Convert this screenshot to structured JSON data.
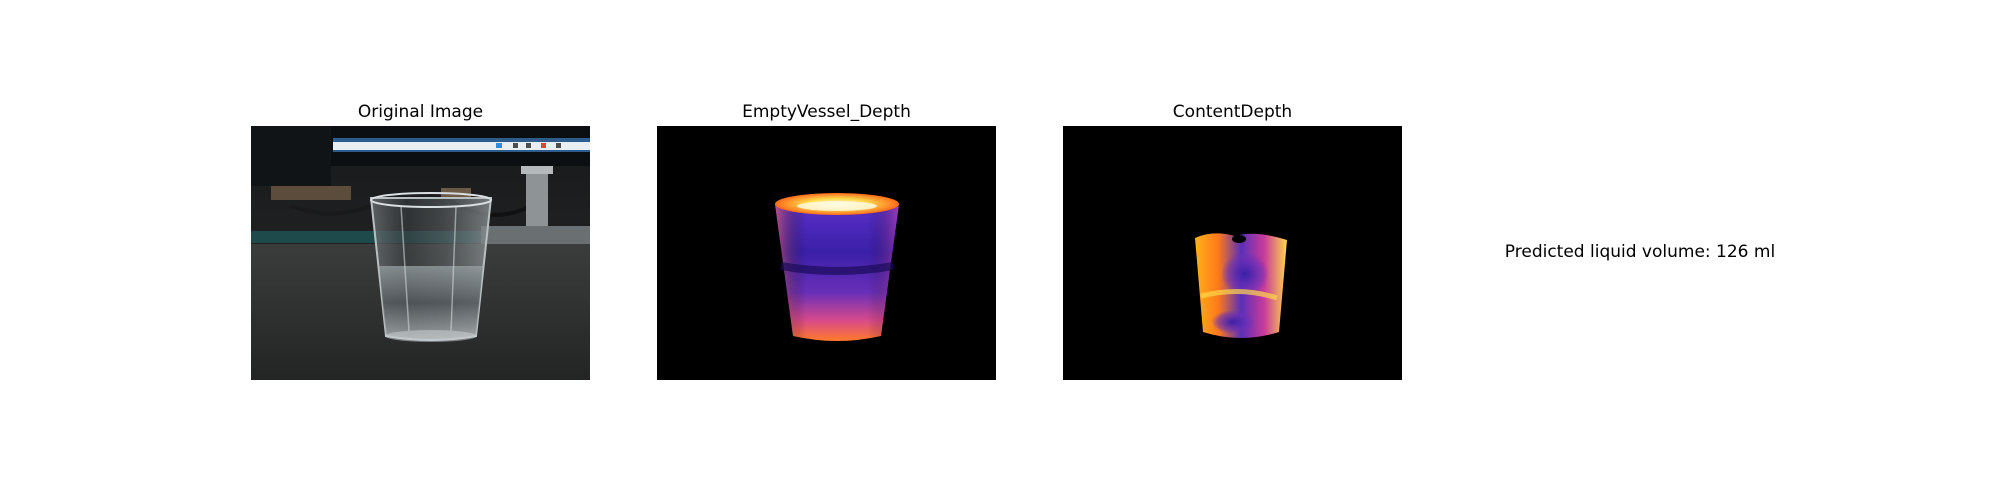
{
  "panels": {
    "original": {
      "title": "Original Image"
    },
    "empty_vessel": {
      "title": "EmptyVessel_Depth"
    },
    "content": {
      "title": "ContentDepth"
    }
  },
  "result": {
    "text": "Predicted liquid volume: 126 ml"
  },
  "colors": {
    "background": "#ffffff",
    "depth_background": "#000000",
    "depth_hot": "#fff2a8",
    "depth_mid": "#ff6a1a",
    "depth_low": "#3a1fa8"
  }
}
